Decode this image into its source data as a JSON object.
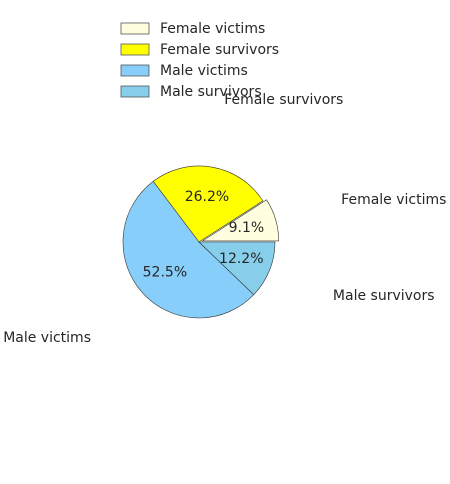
{
  "chart_data": {
    "type": "pie",
    "title": "",
    "categories": [
      "Female victims",
      "Female survivors",
      "Male victims",
      "Male survivors"
    ],
    "values": [
      9.1,
      26.2,
      52.5,
      12.2
    ],
    "percent_labels": [
      "9.1%",
      "26.2%",
      "52.5%",
      "12.2%"
    ],
    "colors": [
      "#ffffe0",
      "#ffff00",
      "#87cefa",
      "#87ceeb"
    ],
    "explode": [
      0.05,
      0,
      0,
      0
    ],
    "start_angle_deg": 0,
    "direction": "counterclockwise",
    "legend": {
      "position": "top-center",
      "entries": [
        "Female victims",
        "Female survivors",
        "Male victims",
        "Male survivors"
      ]
    }
  }
}
